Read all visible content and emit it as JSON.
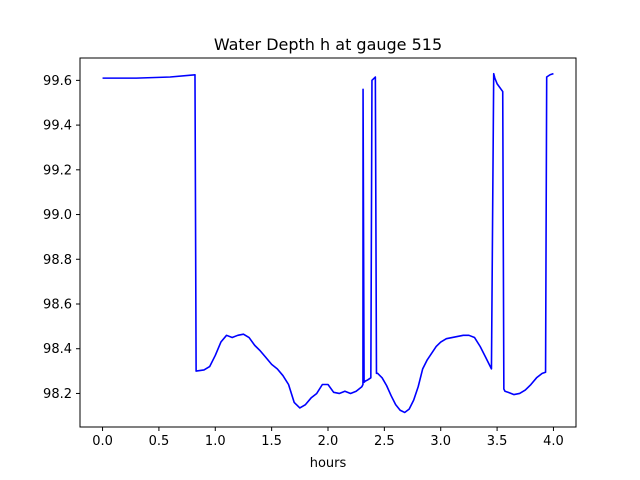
{
  "chart_data": {
    "type": "line",
    "title": "Water Depth h at gauge 515",
    "xlabel": "hours",
    "ylabel": "",
    "xlim": [
      -0.2,
      4.2
    ],
    "ylim": [
      98.05,
      99.7
    ],
    "xticks": [
      0.0,
      0.5,
      1.0,
      1.5,
      2.0,
      2.5,
      3.0,
      3.5,
      4.0
    ],
    "xtick_labels": [
      "0.0",
      "0.5",
      "1.0",
      "1.5",
      "2.0",
      "2.5",
      "3.0",
      "3.5",
      "4.0"
    ],
    "yticks": [
      98.2,
      98.4,
      98.6,
      98.8,
      99.0,
      99.2,
      99.4,
      99.6
    ],
    "ytick_labels": [
      "98.2",
      "98.4",
      "98.6",
      "98.8",
      "99.0",
      "99.2",
      "99.4",
      "99.6"
    ],
    "grid": false,
    "series": [
      {
        "color": "#0000ff",
        "x": [
          0.0,
          0.3,
          0.6,
          0.82,
          0.83,
          0.9,
          0.95,
          1.0,
          1.05,
          1.1,
          1.15,
          1.2,
          1.25,
          1.3,
          1.35,
          1.4,
          1.45,
          1.5,
          1.55,
          1.6,
          1.65,
          1.7,
          1.75,
          1.8,
          1.85,
          1.9,
          1.95,
          2.0,
          2.05,
          2.1,
          2.15,
          2.2,
          2.25,
          2.3,
          2.31,
          2.311,
          2.32,
          2.33,
          2.35,
          2.38,
          2.39,
          2.42,
          2.43,
          2.44,
          2.48,
          2.52,
          2.56,
          2.6,
          2.64,
          2.68,
          2.72,
          2.76,
          2.8,
          2.84,
          2.88,
          2.92,
          2.96,
          3.0,
          3.05,
          3.1,
          3.15,
          3.2,
          3.25,
          3.3,
          3.35,
          3.4,
          3.45,
          3.47,
          3.48,
          3.5,
          3.55,
          3.56,
          3.57,
          3.6,
          3.65,
          3.7,
          3.75,
          3.8,
          3.85,
          3.9,
          3.93,
          3.94,
          3.97,
          4.0
        ],
        "y": [
          99.61,
          99.61,
          99.615,
          99.625,
          98.3,
          98.305,
          98.32,
          98.37,
          98.43,
          98.46,
          98.45,
          98.46,
          98.465,
          98.45,
          98.415,
          98.39,
          98.36,
          98.33,
          98.31,
          98.28,
          98.24,
          98.16,
          98.135,
          98.15,
          98.18,
          98.2,
          98.24,
          98.24,
          98.205,
          98.2,
          98.21,
          98.2,
          98.21,
          98.23,
          98.24,
          99.56,
          98.25,
          98.255,
          98.26,
          98.27,
          99.6,
          99.615,
          98.29,
          98.29,
          98.27,
          98.235,
          98.19,
          98.15,
          98.125,
          98.115,
          98.13,
          98.17,
          98.23,
          98.31,
          98.35,
          98.38,
          98.41,
          98.43,
          98.445,
          98.45,
          98.455,
          98.46,
          98.46,
          98.45,
          98.41,
          98.36,
          98.31,
          99.63,
          99.61,
          99.585,
          99.55,
          98.22,
          98.21,
          98.205,
          98.195,
          98.2,
          98.215,
          98.24,
          98.27,
          98.29,
          98.295,
          99.615,
          99.625,
          99.63
        ]
      }
    ]
  }
}
